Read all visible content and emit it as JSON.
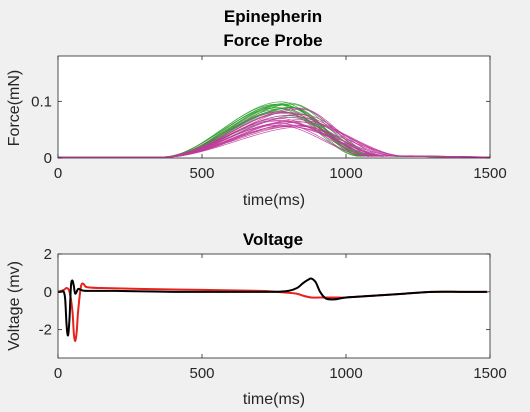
{
  "figure_title": "Epinepherin",
  "chart_data": [
    {
      "type": "line",
      "title": "Force Probe",
      "xlabel": "time(ms)",
      "ylabel": "Force(mN)",
      "xlim": [
        0,
        1500
      ],
      "ylim": [
        0,
        0.18
      ],
      "xticks": [
        "0",
        "500",
        "1000",
        "1500"
      ],
      "xtick_values": [
        0,
        500,
        1000,
        1500
      ],
      "yticks": [
        "0",
        "0.1"
      ],
      "ytick_values": [
        0,
        0.1
      ],
      "grid": false,
      "legend": "none",
      "series_colors": [
        "#2ca02c",
        "#c0399a",
        "#808080"
      ],
      "series_groups": [
        {
          "color": "#2ca02c",
          "count": 14,
          "onset": 360,
          "peak_time_range": [
            740,
            820
          ],
          "peak_range": [
            0.08,
            0.1
          ],
          "decay_end_range": [
            1040,
            1120
          ]
        },
        {
          "color": "#c0399a",
          "count": 20,
          "onset": 360,
          "peak_time_range": [
            760,
            860
          ],
          "peak_range": [
            0.055,
            0.092
          ],
          "decay_end_range": [
            1080,
            1220
          ]
        },
        {
          "color": "#808080",
          "count": 6,
          "onset": 370,
          "peak_time_range": [
            770,
            840
          ],
          "peak_range": [
            0.07,
            0.088
          ],
          "decay_end_range": [
            1060,
            1150
          ]
        }
      ]
    },
    {
      "type": "line",
      "title": "Voltage",
      "xlabel": "time(ms)",
      "ylabel": "Voltage (mv)",
      "xlim": [
        0,
        1500
      ],
      "ylim": [
        -3.5,
        2
      ],
      "xticks": [
        "0",
        "500",
        "1000",
        "1500"
      ],
      "xtick_values": [
        0,
        500,
        1000,
        1500
      ],
      "yticks": [
        "2",
        "0",
        "-2"
      ],
      "ytick_values": [
        2,
        0,
        -2
      ],
      "grid": false,
      "legend": "none",
      "series": [
        {
          "color": "#e8221b",
          "x": [
            0,
            20,
            30,
            40,
            50,
            55,
            60,
            65,
            70,
            80,
            90,
            100,
            150,
            300,
            500,
            700,
            760,
            800,
            830,
            850,
            880,
            920,
            960,
            1000,
            1100,
            1200,
            1300,
            1400,
            1490
          ],
          "y": [
            0,
            0.1,
            0.2,
            0,
            -1.0,
            -2.2,
            -2.6,
            -2.1,
            -1.0,
            0.3,
            0.4,
            0.25,
            0.2,
            0.15,
            0.1,
            0.05,
            0.0,
            -0.05,
            -0.1,
            -0.2,
            -0.3,
            -0.3,
            -0.3,
            -0.3,
            -0.2,
            -0.1,
            0.0,
            0.0,
            0.0
          ]
        },
        {
          "color": "#000000",
          "x": [
            0,
            10,
            20,
            25,
            30,
            35,
            40,
            45,
            50,
            55,
            60,
            70,
            80,
            100,
            200,
            400,
            600,
            750,
            800,
            830,
            850,
            870,
            880,
            895,
            910,
            930,
            960,
            1000,
            1100,
            1200,
            1300,
            1400,
            1490
          ],
          "y": [
            0,
            0,
            0,
            -0.4,
            -1.8,
            -2.3,
            -1.4,
            0.3,
            0.6,
            0.3,
            -0.1,
            0.15,
            0.1,
            0.05,
            0.05,
            0.0,
            0.0,
            0.0,
            0.05,
            0.2,
            0.45,
            0.65,
            0.7,
            0.5,
            0.0,
            -0.35,
            -0.4,
            -0.3,
            -0.2,
            -0.1,
            0.0,
            0.0,
            0.0
          ]
        }
      ]
    }
  ]
}
